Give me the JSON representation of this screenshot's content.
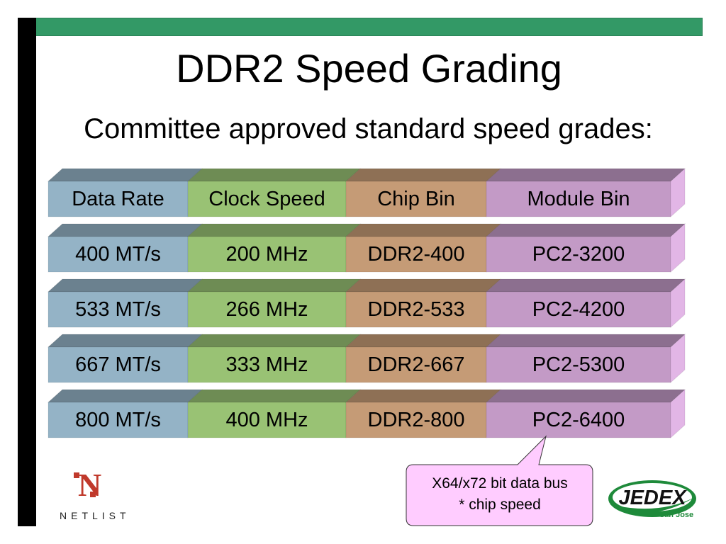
{
  "slide": {
    "title": "DDR2 Speed Grading",
    "subtitle": "Committee approved standard speed grades:"
  },
  "table": {
    "headers": [
      "Data Rate",
      "Clock Speed",
      "Chip Bin",
      "Module Bin"
    ],
    "rows": [
      [
        "400 MT/s",
        "200 MHz",
        "DDR2-400",
        "PC2-3200"
      ],
      [
        "533 MT/s",
        "266 MHz",
        "DDR2-533",
        "PC2-4200"
      ],
      [
        "667 MT/s",
        "333 MHz",
        "DDR2-667",
        "PC2-5300"
      ],
      [
        "800 MT/s",
        "400 MHz",
        "DDR2-800",
        "PC2-6400"
      ]
    ]
  },
  "colors": {
    "accent_bar": "#339966",
    "data_rate": "#94b3c6",
    "clock_speed": "#99c274",
    "chip_bin": "#c59b76",
    "module_bin": "#c39ac6",
    "callout_fill": "#ffccff"
  },
  "callout": {
    "line1": "X64/x72 bit data bus",
    "line2": "* chip speed"
  },
  "logos": {
    "netlist": {
      "mark": "N",
      "text": "NETLIST"
    },
    "jedex": {
      "text": "JEDEX",
      "subtext": "San Jose"
    }
  }
}
